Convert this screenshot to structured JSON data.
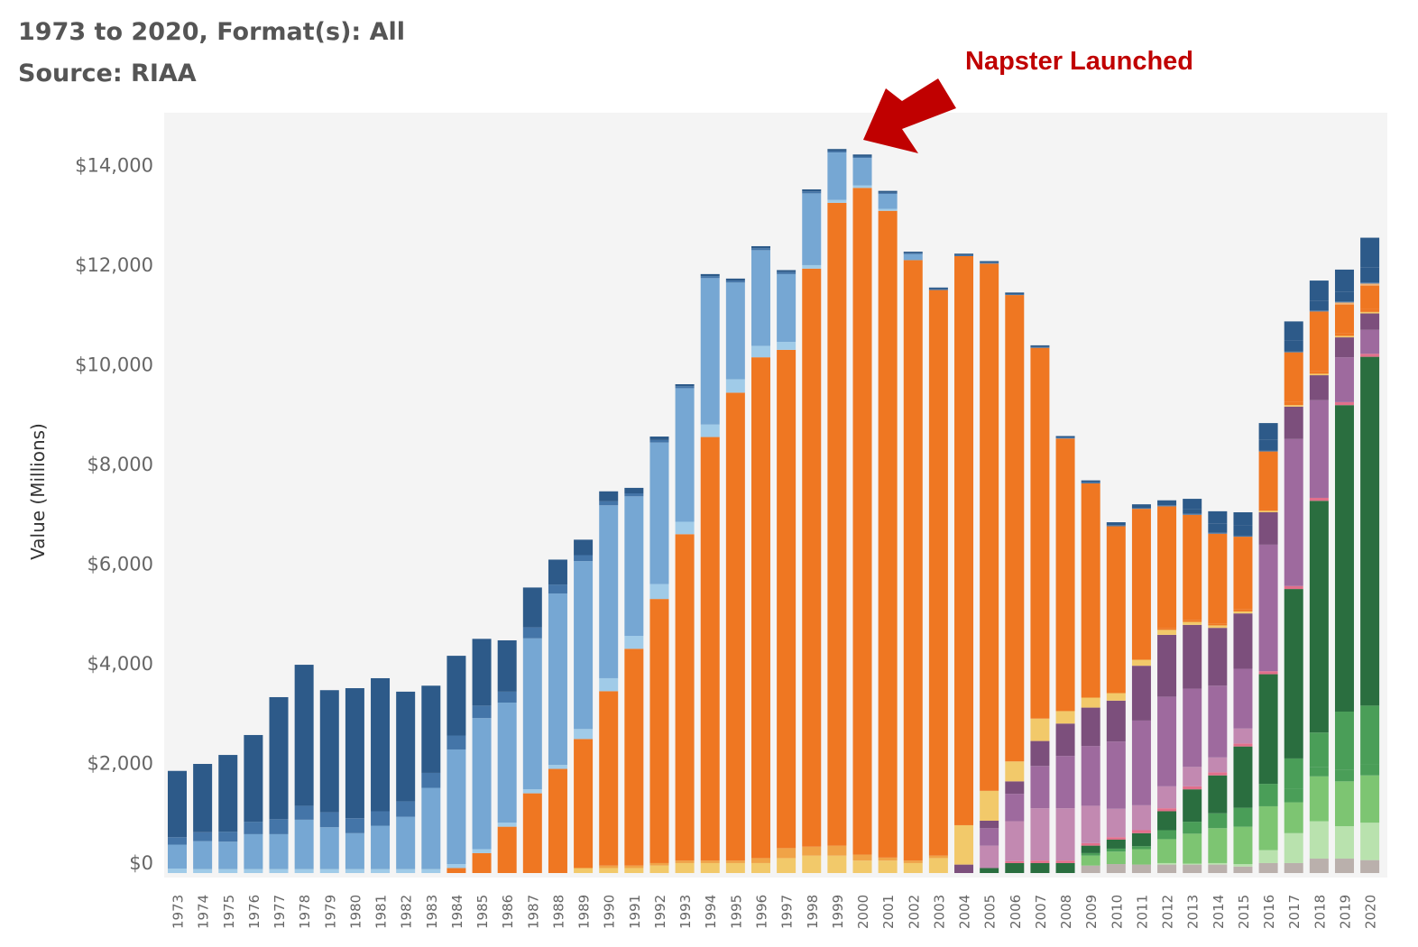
{
  "header": {
    "title": "1973 to 2020, Format(s): All",
    "subtitle": "Source: RIAA"
  },
  "annotation": {
    "text": "Napster Launched",
    "points_to_year": "1999",
    "color": "#c00000"
  },
  "chart_data": {
    "type": "bar",
    "stacked": true,
    "ylabel": "Value (Millions)",
    "ylim": [
      0,
      15500
    ],
    "y_ticks": [
      0,
      2000,
      4000,
      6000,
      8000,
      10000,
      12000,
      14000
    ],
    "y_tick_labels": [
      "$0",
      "$2,000",
      "$4,000",
      "$6,000",
      "$8,000",
      "$10,000",
      "$12,000",
      "$14,000"
    ],
    "grid": false,
    "legend": "none",
    "plot_background": "#f4f4f4",
    "categories": [
      "1973",
      "1974",
      "1975",
      "1976",
      "1977",
      "1978",
      "1979",
      "1980",
      "1981",
      "1982",
      "1983",
      "1984",
      "1985",
      "1986",
      "1987",
      "1988",
      "1989",
      "1990",
      "1991",
      "1992",
      "1993",
      "1994",
      "1995",
      "1996",
      "1997",
      "1998",
      "1999",
      "2000",
      "2001",
      "2002",
      "2003",
      "2004",
      "2005",
      "2006",
      "2007",
      "2008",
      "2009",
      "2010",
      "2011",
      "2012",
      "2013",
      "2014",
      "2015",
      "2016",
      "2017",
      "2018",
      "2019",
      "2020"
    ],
    "series": [
      {
        "color": "#bab0ac",
        "values": [
          0,
          0,
          0,
          0,
          0,
          0,
          0,
          0,
          0,
          0,
          0,
          0,
          0,
          0,
          0,
          0,
          0,
          0,
          0,
          0,
          0,
          0,
          0,
          0,
          0,
          0,
          0,
          0,
          0,
          0,
          0,
          0,
          0,
          0,
          0,
          0,
          150,
          180,
          170,
          170,
          170,
          170,
          130,
          200,
          200,
          290,
          290,
          260
        ]
      },
      {
        "color": "#b9e2ae",
        "values": [
          0,
          0,
          0,
          0,
          0,
          0,
          0,
          0,
          0,
          0,
          0,
          0,
          0,
          0,
          0,
          0,
          0,
          0,
          0,
          0,
          0,
          0,
          0,
          0,
          0,
          0,
          0,
          0,
          0,
          0,
          0,
          0,
          0,
          0,
          0,
          0,
          0,
          0,
          0,
          30,
          20,
          30,
          50,
          260,
          600,
          750,
          650,
          750
        ]
      },
      {
        "color": "#7dc572",
        "values": [
          0,
          0,
          0,
          0,
          0,
          0,
          0,
          0,
          0,
          0,
          0,
          0,
          0,
          0,
          0,
          0,
          0,
          0,
          0,
          0,
          0,
          0,
          0,
          0,
          0,
          0,
          0,
          0,
          0,
          0,
          0,
          0,
          0,
          0,
          0,
          0,
          200,
          250,
          310,
          480,
          600,
          700,
          750,
          880,
          620,
          900,
          900,
          950
        ]
      },
      {
        "color": "#4a9e58",
        "values": [
          0,
          0,
          0,
          0,
          0,
          0,
          0,
          0,
          0,
          0,
          0,
          0,
          0,
          0,
          0,
          0,
          0,
          0,
          0,
          0,
          0,
          0,
          0,
          0,
          0,
          0,
          0,
          0,
          0,
          0,
          0,
          0,
          0,
          0,
          0,
          0,
          50,
          60,
          60,
          180,
          240,
          300,
          380,
          450,
          280,
          180,
          230,
          220
        ]
      },
      {
        "color": "#4a9e58",
        "values": [
          0,
          0,
          0,
          0,
          0,
          0,
          0,
          0,
          0,
          0,
          0,
          0,
          0,
          0,
          0,
          0,
          0,
          0,
          0,
          0,
          0,
          0,
          0,
          0,
          0,
          0,
          0,
          0,
          0,
          0,
          0,
          0,
          0,
          0,
          0,
          0,
          0,
          0,
          0,
          0,
          0,
          0,
          0,
          0,
          600,
          700,
          1170,
          1180
        ]
      },
      {
        "color": "#2a6e3f",
        "values": [
          0,
          0,
          0,
          0,
          0,
          0,
          0,
          0,
          0,
          0,
          0,
          0,
          0,
          0,
          0,
          0,
          0,
          0,
          0,
          0,
          0,
          0,
          0,
          0,
          0,
          0,
          0,
          0,
          0,
          0,
          0,
          0,
          100,
          200,
          200,
          200,
          150,
          180,
          260,
          380,
          650,
          760,
          1230,
          2200,
          3400,
          4650,
          6150,
          7000
        ]
      },
      {
        "color": "#e26f8b",
        "values": [
          0,
          0,
          0,
          0,
          0,
          0,
          0,
          0,
          0,
          0,
          0,
          0,
          0,
          0,
          0,
          0,
          0,
          0,
          0,
          0,
          0,
          0,
          0,
          0,
          0,
          0,
          0,
          0,
          0,
          0,
          0,
          0,
          0,
          40,
          50,
          50,
          50,
          50,
          60,
          60,
          60,
          60,
          60,
          60,
          60,
          60,
          60,
          60
        ]
      },
      {
        "color": "#c289b1",
        "values": [
          0,
          0,
          0,
          0,
          0,
          0,
          0,
          0,
          0,
          0,
          0,
          0,
          0,
          0,
          0,
          0,
          0,
          0,
          0,
          0,
          0,
          0,
          0,
          0,
          0,
          0,
          0,
          0,
          0,
          0,
          0,
          0,
          450,
          800,
          1050,
          1050,
          750,
          570,
          500,
          440,
          390,
          300,
          300,
          0,
          0,
          0,
          0,
          0
        ]
      },
      {
        "color": "#9e6a9e",
        "values": [
          0,
          0,
          0,
          0,
          0,
          0,
          0,
          0,
          0,
          0,
          0,
          0,
          0,
          0,
          0,
          0,
          0,
          0,
          0,
          0,
          0,
          0,
          0,
          0,
          0,
          0,
          0,
          0,
          0,
          0,
          0,
          0,
          350,
          550,
          850,
          1050,
          1200,
          1350,
          1700,
          1800,
          1570,
          1440,
          1200,
          2540,
          2950,
          1960,
          900,
          480
        ]
      },
      {
        "color": "#7c4f7c",
        "values": [
          0,
          0,
          0,
          0,
          0,
          0,
          0,
          0,
          0,
          0,
          0,
          0,
          0,
          0,
          0,
          0,
          0,
          0,
          0,
          0,
          0,
          0,
          0,
          0,
          0,
          0,
          0,
          0,
          0,
          0,
          0,
          170,
          150,
          250,
          500,
          650,
          770,
          820,
          1100,
          1240,
          1280,
          1160,
          1110,
          650,
          650,
          500,
          400,
          330
        ]
      },
      {
        "color": "#f2c96a",
        "values": [
          0,
          0,
          0,
          0,
          0,
          0,
          0,
          0,
          0,
          0,
          0,
          0,
          0,
          0,
          0,
          0,
          100,
          100,
          100,
          150,
          200,
          200,
          200,
          200,
          300,
          350,
          350,
          250,
          250,
          200,
          300,
          790,
          600,
          400,
          450,
          250,
          200,
          150,
          120,
          100,
          60,
          50,
          40,
          30,
          30,
          30,
          30,
          30
        ]
      },
      {
        "color": "#f0a347",
        "values": [
          0,
          0,
          0,
          0,
          0,
          0,
          0,
          0,
          0,
          0,
          0,
          0,
          0,
          0,
          0,
          0,
          0,
          50,
          50,
          50,
          50,
          50,
          50,
          100,
          200,
          180,
          200,
          120,
          60,
          50,
          50,
          0,
          0,
          0,
          0,
          0,
          0,
          0,
          0,
          0,
          0,
          0,
          0,
          0,
          0,
          0,
          0,
          0
        ]
      },
      {
        "color": "#ef7722",
        "values": [
          0,
          0,
          0,
          0,
          0,
          0,
          0,
          0,
          0,
          0,
          0,
          0,
          0,
          0,
          0,
          0,
          0,
          0,
          0,
          0,
          0,
          0,
          0,
          0,
          0,
          0,
          0,
          0,
          0,
          0,
          0,
          0,
          0,
          0,
          0,
          0,
          0,
          0,
          0,
          40,
          40,
          40,
          50,
          60,
          60,
          50,
          50,
          60
        ]
      },
      {
        "color": "#ef7722",
        "values": [
          0,
          0,
          0,
          0,
          0,
          0,
          0,
          0,
          0,
          0,
          0,
          100,
          400,
          930,
          1600,
          2090,
          2590,
          3500,
          4350,
          5300,
          6550,
          8500,
          9390,
          10050,
          10000,
          11600,
          12900,
          13380,
          12980,
          12050,
          11350,
          11420,
          10580,
          9360,
          7440,
          5470,
          4300,
          3350,
          3030,
          2440,
          2110,
          1800,
          1450,
          1130,
          1000,
          1200,
          580,
          470
        ]
      },
      {
        "color": "#f4b375",
        "values": [
          0,
          0,
          0,
          0,
          0,
          0,
          0,
          0,
          0,
          0,
          0,
          0,
          0,
          0,
          0,
          0,
          0,
          0,
          0,
          0,
          0,
          0,
          0,
          0,
          0,
          0,
          0,
          0,
          0,
          0,
          0,
          0,
          0,
          0,
          0,
          0,
          0,
          0,
          0,
          0,
          0,
          0,
          0,
          0,
          0,
          0,
          40,
          40
        ]
      },
      {
        "color": "#a0cbe8",
        "values": [
          90,
          80,
          80,
          80,
          80,
          80,
          80,
          80,
          80,
          80,
          80,
          80,
          80,
          80,
          80,
          80,
          200,
          260,
          260,
          300,
          250,
          250,
          270,
          230,
          160,
          70,
          60,
          50,
          40,
          0,
          0,
          0,
          0,
          0,
          0,
          0,
          0,
          0,
          0,
          0,
          0,
          0,
          0,
          0,
          0,
          0,
          0,
          0
        ]
      },
      {
        "color": "#76a7d3",
        "values": [
          480,
          560,
          550,
          700,
          700,
          990,
          840,
          720,
          870,
          1050,
          1630,
          2300,
          2630,
          2410,
          3030,
          3440,
          3370,
          3470,
          2800,
          2840,
          2680,
          2940,
          1940,
          1920,
          1360,
          1440,
          950,
          550,
          300,
          120,
          0,
          0,
          0,
          0,
          0,
          0,
          0,
          0,
          0,
          0,
          0,
          0,
          0,
          0,
          0,
          0,
          0,
          0
        ]
      },
      {
        "color": "#4475a8",
        "values": [
          150,
          180,
          200,
          250,
          300,
          280,
          300,
          300,
          290,
          310,
          300,
          280,
          250,
          220,
          220,
          180,
          120,
          80,
          60,
          50,
          40,
          40,
          40,
          40,
          40,
          40,
          30,
          30,
          20,
          20,
          20,
          20,
          20,
          20,
          20,
          20,
          20,
          20,
          20,
          20,
          20,
          20,
          20,
          20,
          20,
          20,
          20,
          20
        ]
      },
      {
        "color": "#2d5a89",
        "values": [
          1330,
          1370,
          1540,
          1740,
          2450,
          2830,
          2450,
          2610,
          2670,
          2200,
          1750,
          1600,
          1340,
          1030,
          800,
          500,
          310,
          200,
          110,
          70,
          40,
          40,
          40,
          40,
          40,
          40,
          40,
          40,
          40,
          30,
          30,
          30,
          30,
          30,
          30,
          30,
          40,
          60,
          70,
          100,
          100,
          180,
          200,
          220,
          220,
          200,
          200,
          300
        ]
      },
      {
        "color": "#2d5a89",
        "values": [
          0,
          0,
          0,
          0,
          0,
          0,
          0,
          0,
          0,
          0,
          0,
          0,
          0,
          0,
          0,
          0,
          0,
          0,
          0,
          0,
          0,
          0,
          0,
          0,
          0,
          0,
          0,
          0,
          0,
          0,
          0,
          0,
          0,
          0,
          0,
          0,
          0,
          0,
          0,
          0,
          200,
          250,
          270,
          330,
          380,
          400,
          440,
          600
        ]
      }
    ]
  }
}
